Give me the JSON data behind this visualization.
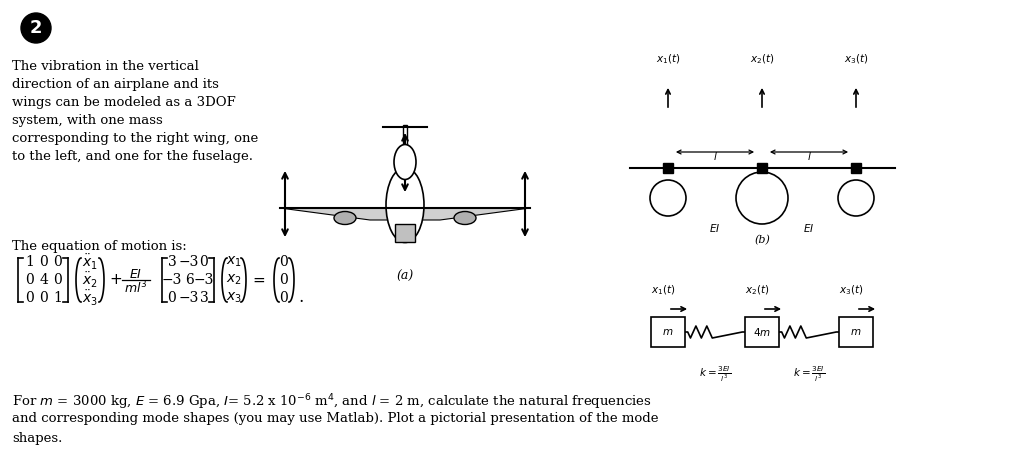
{
  "bg_color": "#ffffff",
  "text_color": "#000000",
  "fig_width": 10.24,
  "fig_height": 4.74,
  "paragraph1_lines": [
    "The vibration in the vertical",
    "direction of an airplane and its",
    "wings can be modeled as a 3DOF",
    "system, with one mass",
    "corresponding to the right wing, one",
    "to the left, and one for the fuselage."
  ],
  "paragraph2": "The equation of motion is:",
  "bottom_line1": "For $m$ = 3000 kg, $E$ = 6.9 Gpa, $I$= 5.2 x 10$^{-6}$ m$^4$, and $l$ = 2 m, calculate the natural frequencies",
  "bottom_line2": "and corresponding mode shapes (you may use Matlab). Plot a pictorial presentation of the mode",
  "bottom_line3": "shapes."
}
